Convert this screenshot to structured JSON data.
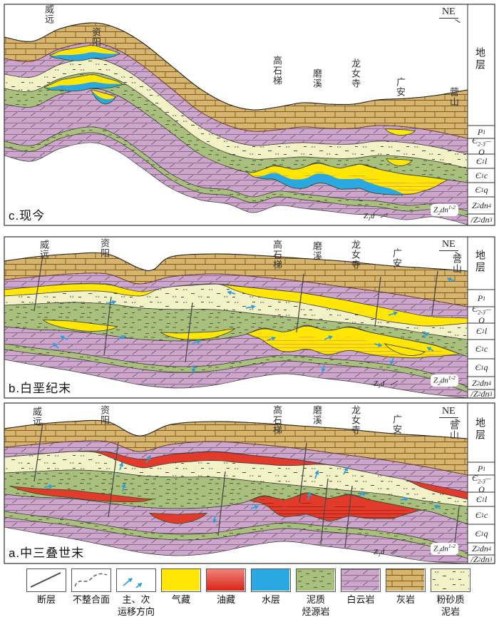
{
  "figure": {
    "title": "geological cross-section evolution figure"
  },
  "panels": [
    {
      "key": "c",
      "caption": "c.现今",
      "direction": "NE"
    },
    {
      "key": "b",
      "caption": "b.白垩纪末",
      "direction": "NE"
    },
    {
      "key": "a",
      "caption": "a.中三叠世末",
      "direction": "NE"
    }
  ],
  "locations": [
    "威远",
    "资阳",
    "高石梯",
    "磨溪",
    "龙女寺",
    "广安",
    "营山"
  ],
  "strata_column": {
    "header": "地层",
    "cells": [
      {
        "base": "P",
        "sub": "1"
      },
      {
        "base": "Є",
        "sub": "2-3",
        "dash": "—",
        "line2": "O"
      },
      {
        "base": "Є",
        "sub": "1",
        "tail": "l"
      },
      {
        "base": "Є",
        "sub": "1",
        "tail": "c"
      },
      {
        "base": "Є",
        "sub": "1",
        "tail": "q"
      },
      {
        "base": "Z",
        "sub": "2",
        "tail": "dn",
        "sup": "4"
      },
      {
        "base": "Z",
        "sub": "2",
        "tail": "dn",
        "sup": "3",
        "slash": "/"
      }
    ]
  },
  "section_labels": {
    "z1d": {
      "base": "Z",
      "sub": "1",
      "tail": "d"
    },
    "z2dn12": {
      "base": "Z",
      "sub": "2",
      "tail": "dn",
      "sup": "1-2"
    }
  },
  "legend": {
    "items": [
      {
        "type": "fault",
        "lines": [
          "断层"
        ]
      },
      {
        "type": "unconformity",
        "lines": [
          "不整合面"
        ]
      },
      {
        "type": "migration",
        "lines": [
          "主、次",
          "运移方向"
        ]
      },
      {
        "type": "gas",
        "lines": [
          "气藏"
        ]
      },
      {
        "type": "oil",
        "lines": [
          "油藏"
        ]
      },
      {
        "type": "water",
        "lines": [
          "水层"
        ]
      },
      {
        "type": "source-rock",
        "lines": [
          "泥质",
          "烃源岩"
        ]
      },
      {
        "type": "dolomite",
        "lines": [
          "白云岩"
        ]
      },
      {
        "type": "limestone",
        "lines": [
          "灰岩"
        ]
      },
      {
        "type": "silty-mudstone",
        "lines": [
          "粉砂质",
          "泥岩"
        ]
      }
    ]
  },
  "colors": {
    "gas": "#FFE605",
    "oil": "#E23B2B",
    "water": "#29A8E2",
    "source_rock": "#A9BF7D",
    "dolomite": "#CEA6CD",
    "limestone": "#D8B56E",
    "silty_mudstone": "#F3F1C6",
    "arrow": "#2E9FD6",
    "fault_line": "#4a4a4a",
    "gas_stripe": "#ECA438",
    "oil_stripe": "#A51E14",
    "unconformity": "#7a3b28"
  }
}
